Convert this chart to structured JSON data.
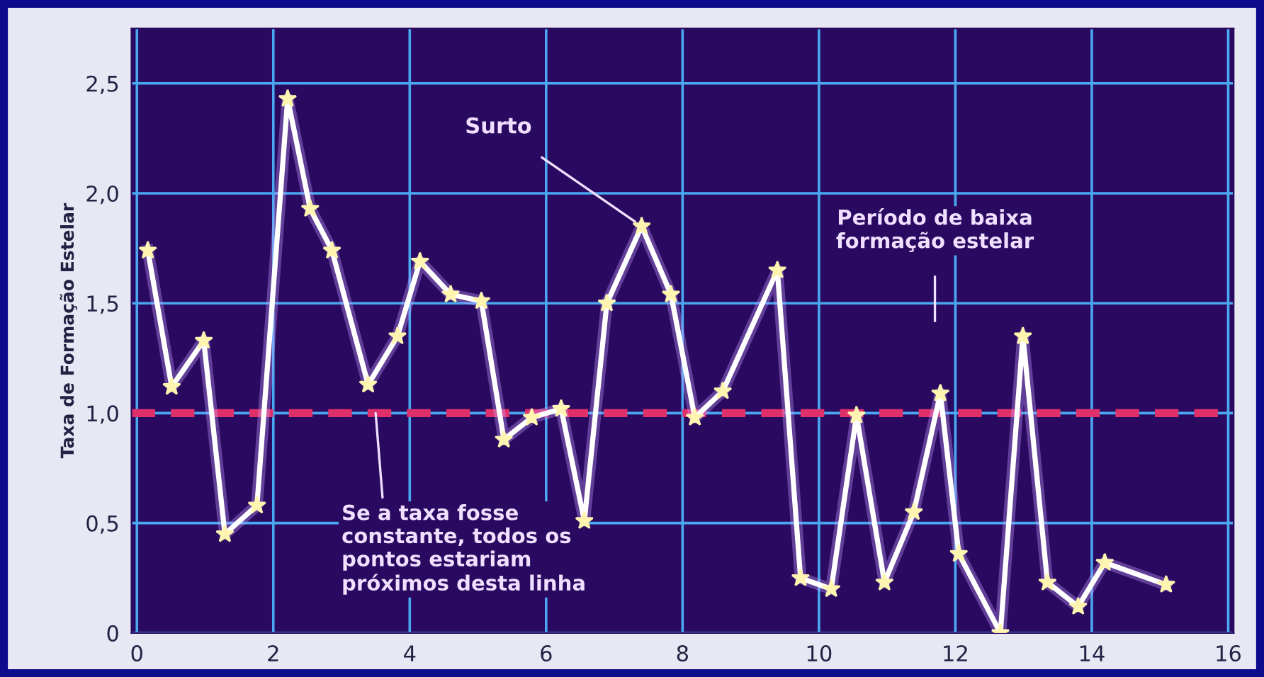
{
  "chart_data": {
    "type": "line",
    "ylabel": "Taxa de Formação Estelar",
    "x": [
      0.16,
      0.51,
      0.98,
      1.29,
      1.76,
      2.21,
      2.54,
      2.86,
      3.39,
      3.82,
      4.15,
      4.6,
      5.05,
      5.38,
      5.79,
      6.22,
      6.56,
      6.89,
      7.4,
      7.83,
      8.18,
      8.59,
      9.39,
      9.73,
      10.18,
      10.55,
      10.96,
      11.39,
      11.78,
      12.05,
      12.66,
      12.99,
      13.35,
      13.8,
      14.19,
      15.09
    ],
    "series": [
      {
        "color": "#ffffff",
        "values": [
          1.74,
          1.12,
          1.33,
          0.45,
          0.58,
          2.43,
          1.93,
          1.74,
          1.13,
          1.35,
          1.69,
          1.54,
          1.51,
          0.88,
          0.98,
          1.02,
          0.51,
          1.5,
          1.85,
          1.54,
          0.98,
          1.1,
          1.65,
          0.25,
          0.2,
          0.99,
          0.23,
          0.55,
          1.09,
          0.36,
          0.0,
          1.35,
          0.23,
          0.12,
          0.32,
          0.22
        ]
      }
    ],
    "marker": "star",
    "line_style": "solid",
    "xlim": [
      -0.08,
      16.08
    ],
    "xticks": [
      0,
      2,
      4,
      6,
      8,
      10,
      12,
      14,
      16
    ],
    "ylim": [
      0,
      2.75
    ],
    "yticks": [
      0,
      {
        "value": 0.5,
        "label": "0,5"
      },
      {
        "value": 1.0,
        "label": "1,0"
      },
      {
        "value": 1.5,
        "label": "1,5"
      },
      {
        "value": 2.0,
        "label": "2,0"
      },
      {
        "value": 2.5,
        "label": "2,5"
      }
    ],
    "grid": true,
    "ref_lines": [
      {
        "axis": "y",
        "value": 1.0,
        "color": "#e0306a",
        "line_style": "dashed"
      }
    ],
    "annotations": [
      {
        "text": "Surto",
        "x": 7.4,
        "y": 1.85
      },
      "Período de baixa\nformação estelar",
      {
        "text": "Se a taxa fosse\nconstante, todos os\npontos estariam\npróximos desta linha",
        "x": 3.5,
        "y": 1.0
      }
    ]
  }
}
